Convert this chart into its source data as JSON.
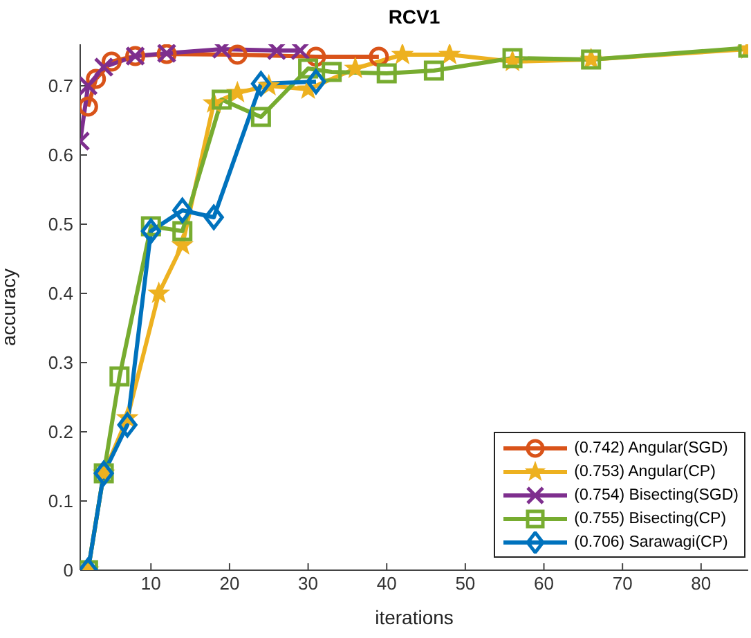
{
  "chart_data": {
    "type": "line",
    "title": "RCV1",
    "xlabel": "iterations",
    "ylabel": "accuracy",
    "xlim": [
      1,
      86
    ],
    "xticks": [
      10,
      20,
      30,
      40,
      50,
      60,
      70,
      80
    ],
    "ylim": [
      0,
      0.76
    ],
    "yticks": [
      0,
      0.1,
      0.2,
      0.3,
      0.4,
      0.5,
      0.6,
      0.7
    ],
    "grid": false,
    "legend": "bottom right",
    "line_style": "solid",
    "series": [
      {
        "name": "(0.742) Angular(SGD)",
        "color": "#d95319",
        "marker": "circle",
        "x": [
          2,
          3,
          5,
          8,
          12,
          21,
          31,
          39
        ],
        "values": [
          0.67,
          0.71,
          0.735,
          0.743,
          0.746,
          0.745,
          0.742,
          0.742
        ]
      },
      {
        "name": "(0.753) Angular(CP)",
        "color": "#edb120",
        "marker": "star",
        "x": [
          2,
          4,
          7,
          11,
          14,
          18,
          21,
          25,
          30,
          36,
          42,
          48,
          56,
          66,
          86
        ],
        "values": [
          0,
          0.14,
          0.22,
          0.4,
          0.47,
          0.675,
          0.69,
          0.7,
          0.695,
          0.725,
          0.745,
          0.745,
          0.735,
          0.738,
          0.753
        ]
      },
      {
        "name": "(0.754) Bisecting(SGD)",
        "color": "#7e2f8e",
        "marker": "cross",
        "x": [
          1,
          2,
          4,
          8,
          12,
          19,
          26,
          29
        ],
        "values": [
          0.62,
          0.7,
          0.727,
          0.743,
          0.747,
          0.753,
          0.751,
          0.751
        ]
      },
      {
        "name": "(0.755) Bisecting(CP)",
        "color": "#77ac30",
        "marker": "square",
        "x": [
          2,
          4,
          6,
          10,
          14,
          19,
          24,
          30,
          33,
          40,
          46,
          56,
          66,
          86
        ],
        "values": [
          0,
          0.14,
          0.28,
          0.497,
          0.49,
          0.68,
          0.655,
          0.725,
          0.72,
          0.718,
          0.722,
          0.74,
          0.738,
          0.755
        ]
      },
      {
        "name": "(0.706) Sarawagi(CP)",
        "color": "#0072bd",
        "marker": "diamond",
        "x": [
          2,
          4,
          7,
          10,
          14,
          18,
          24,
          31
        ],
        "values": [
          0,
          0.14,
          0.21,
          0.49,
          0.52,
          0.51,
          0.703,
          0.706
        ]
      }
    ]
  }
}
